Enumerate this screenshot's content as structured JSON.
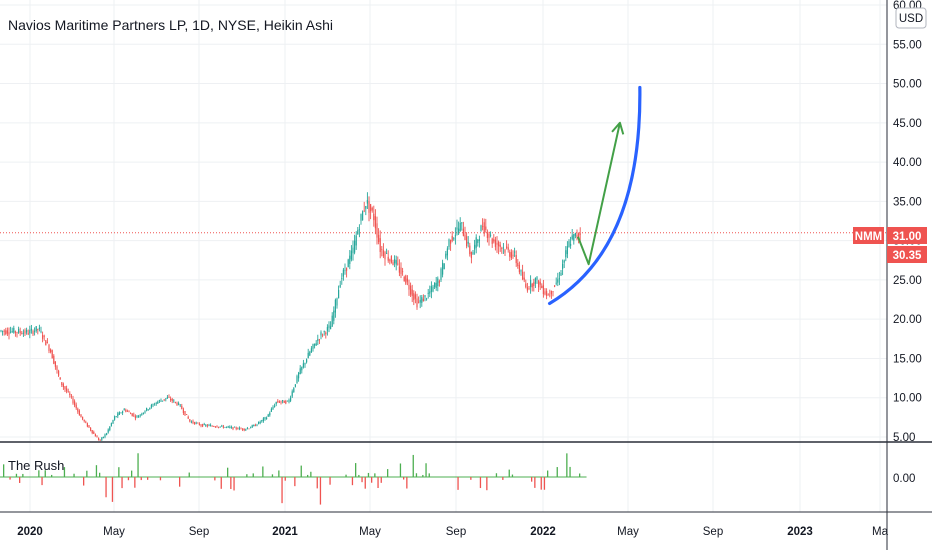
{
  "chart_data": {
    "type": "line",
    "title": "Navios Maritime Partners LP, 1D, NYSE, Heikin Ashi",
    "symbol": "NMM",
    "currency": "USD",
    "style": "Heikin Ashi candlesticks",
    "up_color": "#26a69a",
    "down_color": "#ef5350",
    "x_tick_labels": [
      "2020",
      "May",
      "Sep",
      "2021",
      "May",
      "Sep",
      "2022",
      "May",
      "Sep",
      "2023",
      "Ma"
    ],
    "y_tick_labels": [
      "5.00",
      "10.00",
      "15.00",
      "20.00",
      "25.00",
      "30.00",
      "35.00",
      "40.00",
      "45.00",
      "50.00",
      "55.00",
      "60.00"
    ],
    "ylim": [
      5,
      60
    ],
    "last_price": "31.00",
    "last_price_color": "#ef5350",
    "second_price": "30.35",
    "price_series": {
      "name": "NMM",
      "x": [
        "2019-12-01",
        "2020-01-01",
        "2020-01-15",
        "2020-02-01",
        "2020-02-15",
        "2020-03-01",
        "2020-03-15",
        "2020-04-01",
        "2020-04-10",
        "2020-04-20",
        "2020-05-01",
        "2020-05-15",
        "2020-06-01",
        "2020-06-15",
        "2020-07-01",
        "2020-07-15",
        "2020-08-01",
        "2020-08-15",
        "2020-09-01",
        "2020-10-01",
        "2020-11-01",
        "2020-11-15",
        "2020-12-01",
        "2020-12-15",
        "2021-01-01",
        "2021-01-15",
        "2021-02-01",
        "2021-02-15",
        "2021-03-01",
        "2021-03-15",
        "2021-04-01",
        "2021-04-10",
        "2021-04-20",
        "2021-05-01",
        "2021-05-10",
        "2021-05-20",
        "2021-06-01",
        "2021-06-15",
        "2021-07-01",
        "2021-07-15",
        "2021-08-01",
        "2021-08-15",
        "2021-09-01",
        "2021-09-15",
        "2021-10-01",
        "2021-10-15",
        "2021-11-01",
        "2021-11-15",
        "2021-12-01",
        "2021-12-15",
        "2022-01-01",
        "2022-01-15",
        "2022-02-01",
        "2022-02-15"
      ],
      "y": [
        18.5,
        18.3,
        18.8,
        16.0,
        12.0,
        10.0,
        7.5,
        5.5,
        4.5,
        5.5,
        7.5,
        8.5,
        7.5,
        8.5,
        9.5,
        10.0,
        9.0,
        7.0,
        6.5,
        6.3,
        6.0,
        6.5,
        7.5,
        9.5,
        9.5,
        13.0,
        16.0,
        18.0,
        19.0,
        25.0,
        28.5,
        32.0,
        35.0,
        33.0,
        29.0,
        28.0,
        27.0,
        25.0,
        22.0,
        23.0,
        25.0,
        30.0,
        32.0,
        28.0,
        32.0,
        30.0,
        29.0,
        28.0,
        24.0,
        25.0,
        23.0,
        25.0,
        30.0,
        31.0
      ]
    },
    "annotations": [
      {
        "type": "curve",
        "color": "#2962ff",
        "from": {
          "x": "2022-01-01",
          "y": 22
        },
        "to": {
          "x": "2022-05-01",
          "y": 49.5
        }
      },
      {
        "type": "arrow",
        "color": "#43a047",
        "points": [
          {
            "x": "2022-02-10",
            "y": 30.5
          },
          {
            "x": "2022-02-25",
            "y": 27
          },
          {
            "x": "2022-04-10",
            "y": 45
          }
        ]
      }
    ],
    "indicator": {
      "name": "The Rush",
      "y_tick_label": "0.00",
      "up_color": "#4caf50",
      "down_color": "#ef5350"
    }
  }
}
